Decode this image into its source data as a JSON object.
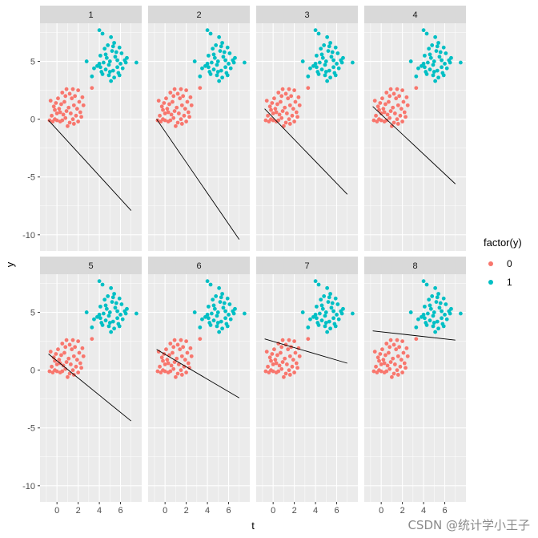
{
  "chart_data": {
    "type": "scatter",
    "facet_labels": [
      "1",
      "2",
      "3",
      "4",
      "5",
      "6",
      "7",
      "8"
    ],
    "xlabel": "t",
    "ylabel": "y",
    "xlim": [
      -1.6,
      8.0
    ],
    "ylim": [
      -11.4,
      8.3
    ],
    "x_ticks": [
      0,
      2,
      4,
      6
    ],
    "y_ticks": [
      -10,
      -5,
      0,
      5
    ],
    "legend": {
      "title": "factor(y)",
      "position": "right",
      "entries": [
        {
          "label": "0",
          "color": "#F8766D"
        },
        {
          "label": "1",
          "color": "#00BFC4"
        }
      ]
    },
    "grid": true,
    "series": [
      {
        "name": "0",
        "color": "#F8766D",
        "points": [
          [
            -0.6,
            1.6
          ],
          [
            -0.3,
            1.1
          ],
          [
            0.1,
            1.8
          ],
          [
            0.5,
            2.3
          ],
          [
            0.9,
            2.6
          ],
          [
            1.5,
            2.6
          ],
          [
            2.0,
            2.5
          ],
          [
            1.2,
            2.2
          ],
          [
            0.7,
            1.5
          ],
          [
            0.2,
            0.9
          ],
          [
            -0.5,
            0.3
          ],
          [
            -0.2,
            0.0
          ],
          [
            0.3,
            -0.2
          ],
          [
            0.8,
            0.1
          ],
          [
            1.3,
            0.5
          ],
          [
            1.8,
            0.3
          ],
          [
            2.2,
            0.6
          ],
          [
            2.0,
            -0.2
          ],
          [
            1.6,
            -0.4
          ],
          [
            1.0,
            -0.6
          ],
          [
            0.5,
            -0.1
          ],
          [
            0.0,
            0.5
          ],
          [
            -0.7,
            -0.1
          ],
          [
            -0.4,
            -0.2
          ],
          [
            1.1,
            1.0
          ],
          [
            1.6,
            1.2
          ],
          [
            2.1,
            1.5
          ],
          [
            2.4,
            1.9
          ],
          [
            0.4,
            1.3
          ],
          [
            -0.1,
            1.4
          ],
          [
            0.9,
            0.7
          ],
          [
            1.4,
            1.8
          ],
          [
            0.6,
            0.4
          ],
          [
            1.9,
            0.9
          ],
          [
            2.3,
            0.2
          ],
          [
            1.2,
            -0.3
          ],
          [
            0.3,
            0.6
          ],
          [
            -0.2,
            0.8
          ],
          [
            1.7,
            2.0
          ],
          [
            0.8,
            2.0
          ],
          [
            3.3,
            2.7
          ],
          [
            2.5,
            1.2
          ],
          [
            0.0,
            -0.1
          ],
          [
            1.5,
            0.0
          ]
        ]
      },
      {
        "name": "1",
        "color": "#00BFC4",
        "points": [
          [
            4.0,
            7.7
          ],
          [
            4.3,
            7.4
          ],
          [
            5.1,
            7.1
          ],
          [
            5.4,
            6.6
          ],
          [
            4.8,
            6.4
          ],
          [
            5.9,
            6.2
          ],
          [
            4.5,
            6.1
          ],
          [
            5.2,
            5.9
          ],
          [
            6.1,
            5.7
          ],
          [
            4.1,
            5.5
          ],
          [
            4.7,
            5.3
          ],
          [
            5.5,
            5.4
          ],
          [
            6.4,
            5.1
          ],
          [
            5.0,
            5.0
          ],
          [
            4.4,
            4.9
          ],
          [
            3.8,
            4.6
          ],
          [
            4.9,
            4.7
          ],
          [
            5.7,
            4.5
          ],
          [
            6.2,
            4.4
          ],
          [
            4.6,
            4.3
          ],
          [
            5.3,
            4.2
          ],
          [
            4.2,
            4.1
          ],
          [
            5.8,
            4.0
          ],
          [
            4.9,
            3.8
          ],
          [
            5.4,
            3.6
          ],
          [
            6.0,
            4.8
          ],
          [
            3.5,
            4.4
          ],
          [
            4.0,
            4.8
          ],
          [
            5.6,
            5.8
          ],
          [
            6.5,
            4.9
          ],
          [
            2.8,
            5.0
          ],
          [
            7.5,
            4.9
          ],
          [
            3.3,
            3.7
          ],
          [
            4.3,
            3.9
          ],
          [
            5.1,
            3.3
          ],
          [
            5.9,
            3.8
          ],
          [
            4.6,
            5.6
          ],
          [
            5.3,
            6.3
          ],
          [
            5.7,
            5.1
          ],
          [
            6.6,
            5.3
          ],
          [
            4.1,
            4.5
          ],
          [
            5.0,
            4.1
          ]
        ]
      }
    ],
    "fitted_lines": [
      {
        "facet": "1",
        "x": [
          -0.8,
          7.0
        ],
        "y": [
          -0.1,
          -7.9
        ]
      },
      {
        "facet": "2",
        "x": [
          -0.8,
          7.0
        ],
        "y": [
          0.0,
          -10.4
        ]
      },
      {
        "facet": "3",
        "x": [
          -0.8,
          7.0
        ],
        "y": [
          0.9,
          -6.5
        ]
      },
      {
        "facet": "4",
        "x": [
          -0.8,
          7.0
        ],
        "y": [
          1.1,
          -5.6
        ]
      },
      {
        "facet": "5",
        "x": [
          -0.8,
          7.0
        ],
        "y": [
          1.4,
          -4.4
        ]
      },
      {
        "facet": "6",
        "x": [
          -0.8,
          7.0
        ],
        "y": [
          1.8,
          -2.4
        ]
      },
      {
        "facet": "7",
        "x": [
          -0.8,
          7.0
        ],
        "y": [
          2.7,
          0.6
        ]
      },
      {
        "facet": "8",
        "x": [
          -0.8,
          7.0
        ],
        "y": [
          3.4,
          2.6
        ]
      }
    ]
  },
  "watermark": "CSDN @统计学小王子"
}
